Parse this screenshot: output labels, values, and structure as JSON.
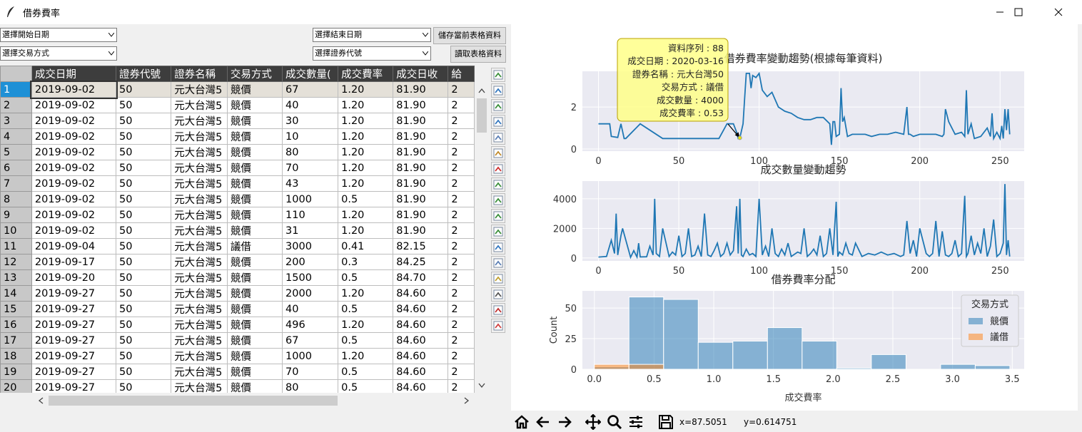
{
  "window": {
    "title": "借券費率",
    "controls": [
      "minimize",
      "maximize",
      "close"
    ]
  },
  "filters": {
    "start_date": "選擇開始日期",
    "end_date": "選擇結束日期",
    "trade_method": "選擇交易方式",
    "security_code": "選擇證券代號",
    "save_button": "儲存當前表格資料",
    "read_button": "讀取表格資料"
  },
  "table": {
    "columns": [
      "成交日期",
      "證券代號",
      "證券名稱",
      "交易方式",
      "成交數量(",
      "成交費率",
      "成交日收",
      "給"
    ],
    "rows": [
      {
        "n": "1",
        "date": "2019-09-02",
        "code": "50",
        "name": "元大台灣5",
        "method": "競價",
        "qty": "67",
        "rate": "1.20",
        "close": "81.90",
        "x": "2"
      },
      {
        "n": "2",
        "date": "2019-09-02",
        "code": "50",
        "name": "元大台灣5",
        "method": "競價",
        "qty": "40",
        "rate": "1.20",
        "close": "81.90",
        "x": "2"
      },
      {
        "n": "3",
        "date": "2019-09-02",
        "code": "50",
        "name": "元大台灣5",
        "method": "競價",
        "qty": "30",
        "rate": "1.20",
        "close": "81.90",
        "x": "2"
      },
      {
        "n": "4",
        "date": "2019-09-02",
        "code": "50",
        "name": "元大台灣5",
        "method": "競價",
        "qty": "10",
        "rate": "1.20",
        "close": "81.90",
        "x": "2"
      },
      {
        "n": "5",
        "date": "2019-09-02",
        "code": "50",
        "name": "元大台灣5",
        "method": "競價",
        "qty": "80",
        "rate": "1.20",
        "close": "81.90",
        "x": "2"
      },
      {
        "n": "6",
        "date": "2019-09-02",
        "code": "50",
        "name": "元大台灣5",
        "method": "競價",
        "qty": "70",
        "rate": "1.20",
        "close": "81.90",
        "x": "2"
      },
      {
        "n": "7",
        "date": "2019-09-02",
        "code": "50",
        "name": "元大台灣5",
        "method": "競價",
        "qty": "43",
        "rate": "1.20",
        "close": "81.90",
        "x": "2"
      },
      {
        "n": "8",
        "date": "2019-09-02",
        "code": "50",
        "name": "元大台灣5",
        "method": "競價",
        "qty": "1000",
        "rate": "0.5",
        "close": "81.90",
        "x": "2"
      },
      {
        "n": "9",
        "date": "2019-09-02",
        "code": "50",
        "name": "元大台灣5",
        "method": "競價",
        "qty": "110",
        "rate": "1.20",
        "close": "81.90",
        "x": "2"
      },
      {
        "n": "10",
        "date": "2019-09-02",
        "code": "50",
        "name": "元大台灣5",
        "method": "競價",
        "qty": "31",
        "rate": "1.20",
        "close": "81.90",
        "x": "2"
      },
      {
        "n": "11",
        "date": "2019-09-04",
        "code": "50",
        "name": "元大台灣5",
        "method": "議借",
        "qty": "3000",
        "rate": "0.41",
        "close": "82.15",
        "x": "2"
      },
      {
        "n": "12",
        "date": "2019-09-17",
        "code": "50",
        "name": "元大台灣5",
        "method": "競價",
        "qty": "200",
        "rate": "0.3",
        "close": "84.25",
        "x": "2"
      },
      {
        "n": "13",
        "date": "2019-09-20",
        "code": "50",
        "name": "元大台灣5",
        "method": "競價",
        "qty": "1500",
        "rate": "0.5",
        "close": "84.70",
        "x": "2"
      },
      {
        "n": "14",
        "date": "2019-09-27",
        "code": "50",
        "name": "元大台灣5",
        "method": "競價",
        "qty": "2000",
        "rate": "1.20",
        "close": "84.60",
        "x": "2"
      },
      {
        "n": "15",
        "date": "2019-09-27",
        "code": "50",
        "name": "元大台灣5",
        "method": "競價",
        "qty": "40",
        "rate": "0.5",
        "close": "84.60",
        "x": "2"
      },
      {
        "n": "16",
        "date": "2019-09-27",
        "code": "50",
        "name": "元大台灣5",
        "method": "競價",
        "qty": "496",
        "rate": "1.20",
        "close": "84.60",
        "x": "2"
      },
      {
        "n": "17",
        "date": "2019-09-27",
        "code": "50",
        "name": "元大台灣5",
        "method": "競價",
        "qty": "67",
        "rate": "0.5",
        "close": "84.60",
        "x": "2"
      },
      {
        "n": "18",
        "date": "2019-09-27",
        "code": "50",
        "name": "元大台灣5",
        "method": "競價",
        "qty": "1000",
        "rate": "1.20",
        "close": "84.60",
        "x": "2"
      },
      {
        "n": "19",
        "date": "2019-09-27",
        "code": "50",
        "name": "元大台灣5",
        "method": "競價",
        "qty": "70",
        "rate": "0.5",
        "close": "84.60",
        "x": "2"
      },
      {
        "n": "20",
        "date": "2019-09-27",
        "code": "50",
        "name": "元大台灣5",
        "method": "競價",
        "qty": "80",
        "rate": "0.5",
        "close": "84.60",
        "x": "2"
      }
    ]
  },
  "side_tools": [
    "insert-row-icon",
    "insert-column-icon",
    "delete-row-icon",
    "delete-column-icon",
    "copy-icon",
    "paste-icon",
    "plot-icon",
    "undo-icon",
    "redo-icon",
    "return-icon",
    "share-icon",
    "chart-icon",
    "duplicate-icon",
    "edit-icon",
    "calculator-icon",
    "stats-chart-icon",
    "close-sheet-icon"
  ],
  "tooltip": {
    "lines": [
      "資料序列 : 88",
      "成交日期 : 2020-03-16",
      "證券名稱 : 元大台灣50",
      "交易方式 : 議借",
      "成交數量 : 4000",
      "成交費率 : 0.53"
    ]
  },
  "mpl_toolbar": {
    "x_readout": "x=87.5051",
    "y_readout": "y=0.614751",
    "icons": [
      "home-icon",
      "back-icon",
      "forward-icon",
      "pan-icon",
      "zoom-icon",
      "configure-icon",
      "save-icon"
    ]
  },
  "colors": {
    "line": "#1f77b4",
    "auction": "#1f77b4",
    "negotiated": "#ff7f0e",
    "plot_bg": "#eaeaf2",
    "header_bg": "#3d3d3d",
    "selected_row": "#1e90d6",
    "tooltip_bg": "#ffff88"
  },
  "chart_data": [
    {
      "type": "line",
      "title": "借券費率變動趨勢(根據每筆資料)",
      "xlim": [
        -10,
        265
      ],
      "ylim": [
        -0.1,
        3.7
      ],
      "xticks": [
        "0",
        "50",
        "100",
        "150",
        "200",
        "250"
      ],
      "yticks": [
        "0",
        "2"
      ],
      "x": [
        0,
        7,
        8,
        12,
        14,
        16,
        17,
        26,
        40,
        60,
        70,
        75,
        80,
        84,
        86,
        87,
        88,
        90,
        91,
        92,
        94,
        95,
        96,
        98,
        99,
        100,
        102,
        105,
        108,
        112,
        116,
        120,
        124,
        128,
        132,
        136,
        140,
        144,
        145,
        146,
        147,
        148,
        150,
        151,
        152,
        153,
        155,
        158,
        162,
        166,
        170,
        175,
        180,
        185,
        190,
        192,
        193,
        194,
        196,
        200,
        205,
        210,
        214,
        215,
        216,
        218,
        222,
        226,
        228,
        229,
        230,
        232,
        234,
        238,
        242,
        244,
        245,
        246,
        248,
        250,
        251,
        252,
        253,
        254,
        255,
        256
      ],
      "y": [
        1.2,
        1.2,
        0.6,
        0.55,
        1.2,
        0.5,
        0.5,
        1.2,
        0.5,
        0.5,
        0.5,
        0.5,
        1.2,
        1.2,
        0.8,
        0.5,
        0.53,
        1.2,
        2.4,
        3.6,
        3.6,
        2.9,
        3.5,
        3.4,
        3.5,
        3.6,
        2.8,
        2.5,
        2.7,
        2.0,
        1.8,
        1.7,
        1.5,
        1.4,
        1.4,
        1.5,
        1.5,
        1.2,
        0.2,
        1.3,
        1.3,
        0.6,
        0.7,
        2.9,
        1.3,
        1.5,
        0.6,
        0.7,
        0.7,
        0.7,
        0.6,
        0.7,
        0.7,
        0.8,
        0.7,
        2.0,
        0.7,
        0.7,
        0.6,
        0.7,
        0.7,
        0.7,
        0.6,
        0.7,
        1.9,
        1.3,
        0.7,
        0.8,
        0.6,
        2.8,
        0.7,
        1.2,
        0.5,
        0.6,
        1.0,
        0.6,
        1.7,
        0.5,
        0.8,
        0.5,
        1.1,
        0.5,
        1.9,
        0.9,
        1.9,
        0.7
      ]
    },
    {
      "type": "line",
      "title": "成交數量變動趨勢",
      "xlim": [
        -10,
        265
      ],
      "ylim": [
        -200,
        5200
      ],
      "xticks": [
        "0",
        "50",
        "100",
        "150",
        "200",
        "250"
      ],
      "yticks": [
        "0",
        "2000",
        "4000"
      ],
      "x": [
        0,
        5,
        8,
        10,
        11,
        12,
        14,
        15,
        20,
        22,
        24,
        25,
        26,
        30,
        32,
        34,
        35,
        36,
        38,
        40,
        44,
        46,
        48,
        50,
        52,
        54,
        56,
        58,
        60,
        62,
        64,
        66,
        68,
        70,
        72,
        74,
        76,
        78,
        80,
        82,
        84,
        86,
        87,
        88,
        89,
        90,
        92,
        94,
        96,
        98,
        100,
        102,
        104,
        106,
        108,
        110,
        112,
        114,
        116,
        118,
        120,
        124,
        126,
        128,
        130,
        132,
        134,
        136,
        138,
        140,
        142,
        144,
        146,
        148,
        149,
        150,
        152,
        154,
        156,
        158,
        160,
        164,
        168,
        172,
        176,
        180,
        184,
        188,
        190,
        192,
        194,
        196,
        198,
        200,
        204,
        206,
        208,
        210,
        212,
        214,
        216,
        218,
        220,
        222,
        224,
        226,
        228,
        229,
        230,
        232,
        234,
        236,
        238,
        240,
        242,
        244,
        246,
        248,
        250,
        252,
        253,
        254,
        255,
        256
      ],
      "y": [
        60,
        100,
        1200,
        300,
        3000,
        200,
        1500,
        2000,
        40,
        496,
        67,
        1000,
        70,
        80,
        800,
        200,
        4000,
        300,
        100,
        2000,
        100,
        400,
        200,
        1500,
        100,
        300,
        2000,
        100,
        200,
        800,
        100,
        3000,
        200,
        100,
        500,
        1000,
        100,
        300,
        1000,
        200,
        500,
        3500,
        300,
        4000,
        200,
        100,
        600,
        200,
        300,
        100,
        4000,
        200,
        800,
        100,
        2000,
        300,
        100,
        600,
        200,
        1000,
        100,
        400,
        300,
        2000,
        100,
        300,
        600,
        200,
        1500,
        100,
        300,
        2000,
        200,
        3800,
        100,
        400,
        200,
        1000,
        300,
        200,
        1000,
        100,
        300,
        200,
        400,
        200,
        300,
        100,
        200,
        2500,
        300,
        1200,
        100,
        2000,
        300,
        100,
        300,
        2500,
        100,
        1800,
        200,
        100,
        300,
        1200,
        100,
        300,
        4200,
        100,
        300,
        1500,
        200,
        1000,
        300,
        2000,
        100,
        800,
        2600,
        100,
        300,
        1000,
        5000,
        200,
        1200,
        100
      ]
    },
    {
      "type": "histogram",
      "title": "借券費率分配",
      "xlabel": "成交費率",
      "ylabel": "Count",
      "xlim": [
        -0.1,
        3.6
      ],
      "ylim": [
        0,
        64
      ],
      "xticks": [
        "0.0",
        "0.5",
        "1.0",
        "1.5",
        "2.0",
        "2.5",
        "3.0",
        "3.5"
      ],
      "yticks": [
        "0",
        "25",
        "50"
      ],
      "legend": {
        "title": "交易方式",
        "entries": [
          "競價",
          "議借"
        ],
        "position": "top-right"
      },
      "bins": [
        0.0,
        0.29,
        0.58,
        0.87,
        1.16,
        1.45,
        1.74,
        2.03,
        2.32,
        2.61,
        2.9,
        3.19,
        3.48
      ],
      "series": [
        {
          "name": "競價",
          "values": [
            2,
            59,
            57,
            22,
            23,
            34,
            23,
            1,
            12,
            0,
            4,
            3
          ]
        },
        {
          "name": "議借",
          "values": [
            4,
            4,
            0,
            0,
            0,
            0,
            0,
            0,
            0,
            0,
            0,
            0
          ]
        }
      ]
    }
  ]
}
